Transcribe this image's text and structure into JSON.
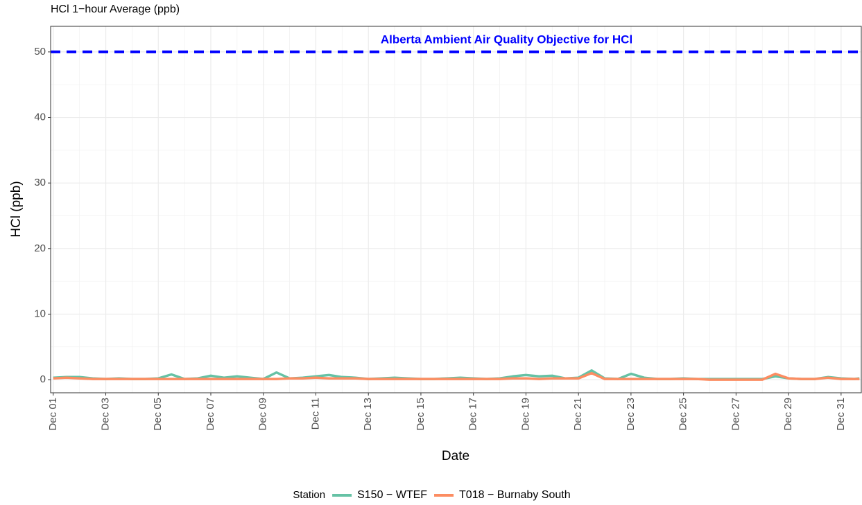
{
  "chart_data": {
    "type": "line",
    "title": "HCl 1−hour Average (ppb)",
    "x_label": "Date",
    "y_label": "HCl (ppb)",
    "legend_title": "Station",
    "legend_position": "bottom",
    "x": [
      1,
      1.5,
      2,
      2.5,
      3,
      3.5,
      4,
      4.5,
      5,
      5.5,
      6,
      6.5,
      7,
      7.5,
      8,
      8.5,
      9,
      9.5,
      10,
      10.5,
      11,
      11.5,
      12,
      12.5,
      13,
      13.5,
      14,
      14.5,
      15,
      15.5,
      16,
      16.5,
      17,
      17.5,
      18,
      18.5,
      19,
      19.5,
      20,
      20.5,
      21,
      21.5,
      22,
      22.5,
      23,
      23.5,
      24,
      24.5,
      25,
      25.5,
      26,
      26.5,
      27,
      27.5,
      28,
      28.5,
      29,
      29.5,
      30,
      30.5,
      31,
      31.5,
      31.7
    ],
    "series": [
      {
        "name": "S150 − WTEF",
        "color": "#66c2a5",
        "values": [
          0.3,
          0.4,
          0.4,
          0.2,
          0.1,
          0.2,
          0.1,
          0.1,
          0.2,
          0.8,
          0.1,
          0.2,
          0.6,
          0.3,
          0.5,
          0.3,
          0.1,
          1.1,
          0.2,
          0.3,
          0.5,
          0.7,
          0.4,
          0.3,
          0.1,
          0.2,
          0.3,
          0.2,
          0.1,
          0.1,
          0.2,
          0.3,
          0.2,
          0.1,
          0.2,
          0.5,
          0.7,
          0.5,
          0.6,
          0.2,
          0.3,
          1.4,
          0.2,
          0.1,
          0.9,
          0.3,
          0.1,
          0.1,
          0.2,
          0.1,
          0.1,
          0.1,
          0.1,
          0.1,
          0.1,
          0.5,
          0.2,
          0.1,
          0.1,
          0.4,
          0.2,
          0.1,
          0.2
        ]
      },
      {
        "name": "T018 − Burnaby South",
        "color": "#fc8d62",
        "values": [
          0.2,
          0.3,
          0.2,
          0.1,
          0.1,
          0.1,
          0.1,
          0.1,
          0.1,
          0.1,
          0.1,
          0.1,
          0.1,
          0.1,
          0.1,
          0.1,
          0.1,
          0.1,
          0.2,
          0.2,
          0.3,
          0.2,
          0.2,
          0.2,
          0.1,
          0.1,
          0.1,
          0.1,
          0.1,
          0.1,
          0.1,
          0.1,
          0.1,
          0.1,
          0.1,
          0.2,
          0.2,
          0.1,
          0.2,
          0.2,
          0.2,
          1.0,
          0.1,
          0.1,
          0.1,
          0.1,
          0.1,
          0.1,
          0.1,
          0.1,
          0.0,
          0.0,
          0.0,
          0.0,
          0.0,
          0.9,
          0.2,
          0.1,
          0.1,
          0.3,
          0.1,
          0.1,
          0.1
        ]
      }
    ],
    "reference_line": {
      "value": 50,
      "label": "Alberta Ambient Air Quality Objective for HCl",
      "color": "#0000ff",
      "dashed": true
    },
    "xlim": [
      0.9,
      31.77
    ],
    "ylim": [
      -2,
      53.9
    ],
    "xticks": [
      {
        "value": 1,
        "label": "Dec 01"
      },
      {
        "value": 3,
        "label": "Dec 03"
      },
      {
        "value": 5,
        "label": "Dec 05"
      },
      {
        "value": 7,
        "label": "Dec 07"
      },
      {
        "value": 9,
        "label": "Dec 09"
      },
      {
        "value": 11,
        "label": "Dec 11"
      },
      {
        "value": 13,
        "label": "Dec 13"
      },
      {
        "value": 15,
        "label": "Dec 15"
      },
      {
        "value": 17,
        "label": "Dec 17"
      },
      {
        "value": 19,
        "label": "Dec 19"
      },
      {
        "value": 21,
        "label": "Dec 21"
      },
      {
        "value": 23,
        "label": "Dec 23"
      },
      {
        "value": 25,
        "label": "Dec 25"
      },
      {
        "value": 27,
        "label": "Dec 27"
      },
      {
        "value": 29,
        "label": "Dec 29"
      },
      {
        "value": 31,
        "label": "Dec 31"
      }
    ],
    "yticks": [
      0,
      10,
      20,
      30,
      40,
      50
    ],
    "grid": true
  }
}
